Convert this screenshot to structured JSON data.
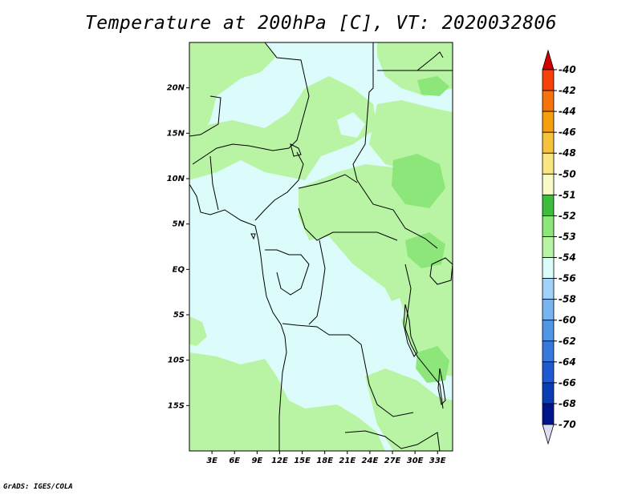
{
  "header": {
    "title": "Temperature at 200hPa [C], VT: 2020032806"
  },
  "footer": {
    "credit": "GrADS: IGES/COLA"
  },
  "map": {
    "lon_range": [
      0,
      35
    ],
    "lat_range": [
      -20,
      25
    ],
    "lat_tick_labels": [
      {
        "lat": 20,
        "label": "20N"
      },
      {
        "lat": 15,
        "label": "15N"
      },
      {
        "lat": 10,
        "label": "10N"
      },
      {
        "lat": 5,
        "label": "5N"
      },
      {
        "lat": 0,
        "label": "EQ"
      },
      {
        "lat": -5,
        "label": "5S"
      },
      {
        "lat": -10,
        "label": "10S"
      },
      {
        "lat": -15,
        "label": "15S"
      }
    ],
    "lon_tick_labels": [
      {
        "lon": 3,
        "label": "3E"
      },
      {
        "lon": 6,
        "label": "6E"
      },
      {
        "lon": 9,
        "label": "9E"
      },
      {
        "lon": 12,
        "label": "12E"
      },
      {
        "lon": 15,
        "label": "15E"
      },
      {
        "lon": 18,
        "label": "18E"
      },
      {
        "lon": 21,
        "label": "21E"
      },
      {
        "lon": 24,
        "label": "24E"
      },
      {
        "lon": 27,
        "label": "27E"
      },
      {
        "lon": 30,
        "label": "30E"
      },
      {
        "lon": 33,
        "label": "33E"
      }
    ],
    "colors": {
      "light_cyan": "#dcfcfc",
      "light_green": "#b8f4a4",
      "mid_green": "#8ce67a"
    }
  },
  "colorbar": {
    "levels": [
      {
        "label": "-40",
        "color": "#e60a0a"
      },
      {
        "label": "-42",
        "color": "#f5420a"
      },
      {
        "label": "-44",
        "color": "#f5730a"
      },
      {
        "label": "-46",
        "color": "#f5a00a"
      },
      {
        "label": "-48",
        "color": "#f5c23c"
      },
      {
        "label": "-50",
        "color": "#fae682"
      },
      {
        "label": "-51",
        "color": "#fafac8"
      },
      {
        "label": "-52",
        "color": "#3cbe3c"
      },
      {
        "label": "-53",
        "color": "#8ce67a"
      },
      {
        "label": "-54",
        "color": "#b8f4a4"
      },
      {
        "label": "-56",
        "color": "#dcfcfc"
      },
      {
        "label": "-58",
        "color": "#a0d2fa"
      },
      {
        "label": "-60",
        "color": "#78b4f0"
      },
      {
        "label": "-62",
        "color": "#5096e6"
      },
      {
        "label": "-64",
        "color": "#3778dc"
      },
      {
        "label": "-66",
        "color": "#1e5ad2"
      },
      {
        "label": "-68",
        "color": "#0a3cb4"
      },
      {
        "label": "-70",
        "color": "#00148c"
      }
    ],
    "top_triangle_color": "#d20000",
    "bottom_triangle_color": "#dcdcf5"
  }
}
